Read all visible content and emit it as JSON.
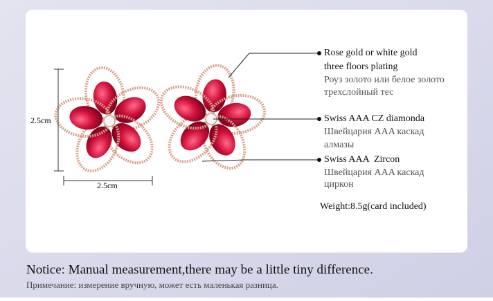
{
  "dimensions": {
    "height": "2.5cm",
    "width": "2.5cm"
  },
  "callouts": [
    {
      "english": [
        "Rose gold or white gold",
        "three floors plating"
      ],
      "russian": [
        "Роуз золото или белое золото",
        "трехслойный тес"
      ]
    },
    {
      "english": [
        "Swiss AAA CZ diamonda"
      ],
      "russian": [
        "Швейцария AAA каскад",
        "алмазы"
      ]
    },
    {
      "english": [
        "Swiss AAA  Zircon"
      ],
      "russian": [
        "Швейцария AAA каскад",
        "циркон"
      ]
    }
  ],
  "weight": "Weight:8.5g(card included)",
  "notice": {
    "english": "Notice: Manual measurement,there may be a little tiny difference.",
    "russian": "Примечание: измерение вручную, может есть маленькая разница."
  }
}
